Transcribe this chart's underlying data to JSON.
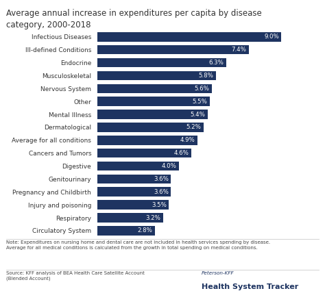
{
  "title": "Average annual increase in expenditures per capita by disease\ncategory, 2000-2018",
  "categories": [
    "Circulatory System",
    "Respiratory",
    "Injury and poisoning",
    "Pregnancy and Childbirth",
    "Genitourinary",
    "Digestive",
    "Cancers and Tumors",
    "Average for all conditions",
    "Dermatological",
    "Mental Illness",
    "Other",
    "Nervous System",
    "Musculoskeletal",
    "Endocrine",
    "Ill-defined Conditions",
    "Infectious Diseases"
  ],
  "values": [
    2.8,
    3.2,
    3.5,
    3.6,
    3.6,
    4.0,
    4.6,
    4.9,
    5.2,
    5.4,
    5.5,
    5.6,
    5.8,
    6.3,
    7.4,
    9.0
  ],
  "bar_color": "#1e3461",
  "label_color": "#ffffff",
  "title_color": "#333333",
  "background_color": "#ffffff",
  "note_text": "Note: Expenditures on nursing home and dental care are not included in health services spending by disease.\nAverage for all medical conditions is calculated from the growth in total spending on medical conditions.",
  "source_text": "Source: KFF analysis of BEA Health Care Satellite Account\n(Blended Account)",
  "tracker_text1": "Peterson-KFF",
  "tracker_text2": "Health System Tracker",
  "xlim": [
    0,
    10.5
  ]
}
